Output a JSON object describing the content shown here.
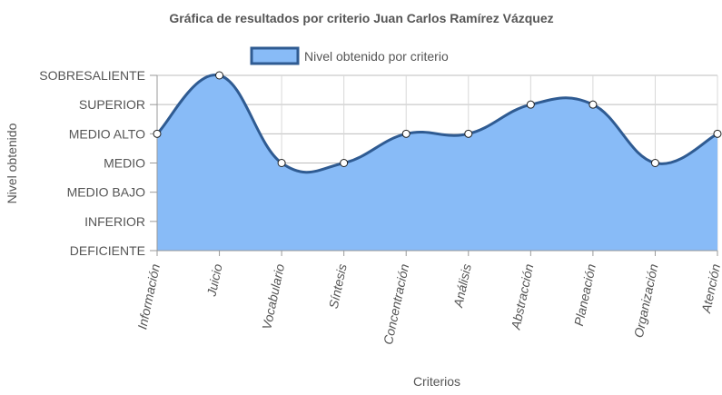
{
  "chart_data": {
    "type": "area",
    "title": "Gráfica de resultados por criterio Juan Carlos Ramírez Vázquez",
    "xlabel": "Criterios",
    "ylabel": "Nivel obtenido",
    "categories": [
      "Información",
      "Juicio",
      "Vocabulario",
      "Síntesis",
      "Concentración",
      "Análisis",
      "Abstracción",
      "Planeación",
      "Organización",
      "Atención"
    ],
    "y_levels": [
      "DEFICIENTE",
      "INFERIOR",
      "MEDIO BAJO",
      "MEDIO",
      "MEDIO ALTO",
      "SUPERIOR",
      "SOBRESALIENTE"
    ],
    "ylim": [
      0,
      6
    ],
    "series": [
      {
        "name": "Nivel obtenido por criterio",
        "values": [
          4,
          6,
          3,
          3,
          4,
          4,
          5,
          5,
          3,
          4
        ],
        "value_labels": [
          "MEDIO ALTO",
          "SOBRESALIENTE",
          "MEDIO",
          "MEDIO",
          "MEDIO ALTO",
          "MEDIO ALTO",
          "SUPERIOR",
          "SUPERIOR",
          "MEDIO",
          "MEDIO ALTO"
        ]
      }
    ],
    "grid": true,
    "legend_position": "top-center",
    "colors": {
      "fill": "#88bbf7",
      "line": "#2f5b92",
      "point_fill": "#ffffff",
      "point_stroke": "#222222"
    }
  }
}
